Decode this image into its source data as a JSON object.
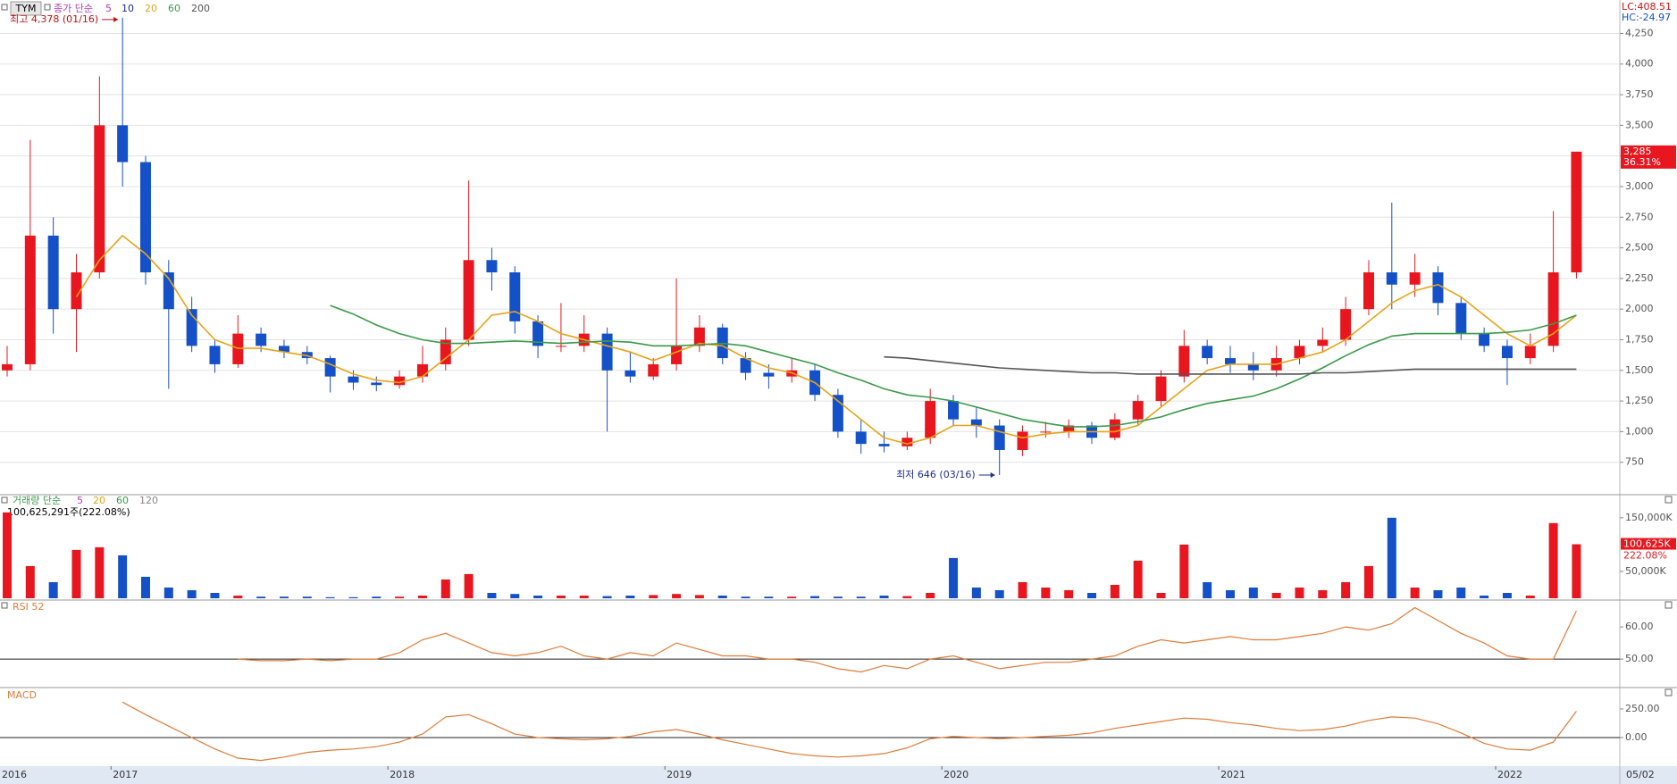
{
  "chart_data": [
    {
      "type": "candlestick",
      "symbol": "TYM",
      "legend_title": "종가 단순",
      "info": [
        "LC:408.51",
        "HC:-24.97"
      ],
      "x_start_label": "2016",
      "x_end_label": "05/02",
      "categories": [
        null,
        null,
        null,
        null,
        null,
        "2017",
        null,
        null,
        null,
        null,
        null,
        null,
        null,
        null,
        null,
        null,
        null,
        "2018",
        null,
        null,
        null,
        null,
        null,
        null,
        null,
        null,
        null,
        null,
        null,
        "2019",
        null,
        null,
        null,
        null,
        null,
        null,
        null,
        null,
        null,
        null,
        null,
        "2020",
        null,
        null,
        null,
        null,
        null,
        null,
        null,
        null,
        null,
        null,
        null,
        "2021",
        null,
        null,
        null,
        null,
        null,
        null,
        null,
        null,
        null,
        null,
        null,
        "2022",
        null,
        null,
        null
      ],
      "open": [
        1500,
        1550,
        2600,
        2000,
        2300,
        3500,
        3200,
        2300,
        2000,
        1700,
        1550,
        1800,
        1700,
        1650,
        1600,
        1450,
        1400,
        1380,
        1450,
        1550,
        1750,
        2400,
        2300,
        1900,
        1700,
        1700,
        1800,
        1500,
        1450,
        1550,
        1700,
        1850,
        1600,
        1480,
        1450,
        1500,
        1300,
        1000,
        900,
        880,
        950,
        1250,
        1100,
        1050,
        850,
        1000,
        1000,
        1050,
        950,
        1100,
        1250,
        1450,
        1700,
        1600,
        1550,
        1500,
        1600,
        1700,
        1750,
        2000,
        2300,
        2200,
        2300,
        2050,
        1800,
        1700,
        1600,
        1700,
        2300
      ],
      "high": [
        1700,
        3380,
        2750,
        2450,
        3900,
        4378,
        3250,
        2400,
        2100,
        1750,
        1950,
        1850,
        1750,
        1700,
        1620,
        1500,
        1450,
        1500,
        1700,
        1850,
        3050,
        2500,
        2350,
        1950,
        2050,
        1950,
        1850,
        1650,
        1600,
        2250,
        1950,
        1880,
        1650,
        1550,
        1600,
        1550,
        1350,
        1100,
        1000,
        1000,
        1350,
        1300,
        1200,
        1100,
        1050,
        1080,
        1100,
        1080,
        1150,
        1300,
        1500,
        1830,
        1750,
        1700,
        1650,
        1700,
        1750,
        1850,
        2100,
        2400,
        2870,
        2450,
        2350,
        2100,
        1850,
        1750,
        1800,
        2800,
        3285
      ],
      "low": [
        1450,
        1500,
        1800,
        1650,
        2250,
        3000,
        2200,
        1350,
        1650,
        1480,
        1520,
        1650,
        1600,
        1550,
        1320,
        1340,
        1330,
        1350,
        1400,
        1500,
        1700,
        2150,
        1800,
        1600,
        1650,
        1650,
        1000,
        1400,
        1420,
        1500,
        1650,
        1550,
        1420,
        1350,
        1400,
        1250,
        950,
        820,
        830,
        850,
        900,
        1050,
        950,
        646,
        800,
        950,
        950,
        900,
        930,
        1050,
        1200,
        1400,
        1550,
        1480,
        1420,
        1450,
        1550,
        1650,
        1700,
        1950,
        2000,
        2100,
        1950,
        1750,
        1650,
        1380,
        1550,
        1650,
        2250
      ],
      "close": [
        1550,
        2600,
        2000,
        2300,
        3500,
        3200,
        2300,
        2000,
        1700,
        1550,
        1800,
        1700,
        1650,
        1600,
        1450,
        1400,
        1380,
        1450,
        1550,
        1750,
        2400,
        2300,
        1900,
        1700,
        1700,
        1800,
        1500,
        1450,
        1550,
        1700,
        1850,
        1600,
        1480,
        1450,
        1500,
        1300,
        1000,
        900,
        880,
        950,
        1250,
        1100,
        1050,
        850,
        1000,
        1000,
        1050,
        950,
        1100,
        1250,
        1450,
        1700,
        1600,
        1550,
        1500,
        1600,
        1700,
        1750,
        2000,
        2300,
        2200,
        2300,
        2050,
        1800,
        1700,
        1600,
        1700,
        2300,
        3285
      ],
      "up_color": "#e8161e",
      "down_color": "#1450c8",
      "series": [
        {
          "name": "5",
          "color": "#b03cb0"
        },
        {
          "name": "10",
          "color": "#1e2d8c"
        },
        {
          "name": "20",
          "color": "#e8a317",
          "values": [
            null,
            null,
            null,
            2100,
            2400,
            2600,
            2450,
            2250,
            1950,
            1750,
            1680,
            1680,
            1650,
            1620,
            1550,
            1470,
            1420,
            1400,
            1450,
            1600,
            1750,
            1950,
            1980,
            1900,
            1800,
            1750,
            1700,
            1650,
            1580,
            1650,
            1720,
            1700,
            1600,
            1520,
            1480,
            1400,
            1250,
            1100,
            950,
            900,
            950,
            1050,
            1050,
            1000,
            950,
            980,
            1000,
            1000,
            1000,
            1050,
            1200,
            1350,
            1500,
            1550,
            1550,
            1550,
            1600,
            1650,
            1750,
            1900,
            2050,
            2150,
            2200,
            2100,
            1950,
            1800,
            1700,
            1800,
            1950
          ]
        },
        {
          "name": "60",
          "color": "#3a9a4a",
          "values": [
            null,
            null,
            null,
            null,
            null,
            null,
            null,
            null,
            null,
            null,
            null,
            null,
            null,
            null,
            2030,
            1960,
            1870,
            1800,
            1750,
            1720,
            1720,
            1730,
            1740,
            1730,
            1720,
            1730,
            1740,
            1730,
            1700,
            1700,
            1710,
            1720,
            1700,
            1650,
            1600,
            1550,
            1480,
            1420,
            1350,
            1300,
            1280,
            1250,
            1200,
            1150,
            1100,
            1070,
            1040,
            1040,
            1050,
            1080,
            1120,
            1180,
            1230,
            1260,
            1290,
            1350,
            1430,
            1520,
            1620,
            1710,
            1780,
            1800,
            1800,
            1800,
            1800,
            1810,
            1830,
            1880,
            1950
          ]
        },
        {
          "name": "200",
          "color": "#555555",
          "values": [
            null,
            null,
            null,
            null,
            null,
            null,
            null,
            null,
            null,
            null,
            null,
            null,
            null,
            null,
            null,
            null,
            null,
            null,
            null,
            null,
            null,
            null,
            null,
            null,
            null,
            null,
            null,
            null,
            null,
            null,
            null,
            null,
            null,
            null,
            null,
            null,
            null,
            null,
            1610,
            1600,
            1580,
            1560,
            1540,
            1520,
            1510,
            1500,
            1490,
            1480,
            1480,
            1470,
            1470,
            1470,
            1470,
            1470,
            1470,
            1470,
            1470,
            1480,
            1480,
            1490,
            1500,
            1510,
            1510,
            1510,
            1510,
            1510,
            1510,
            1510,
            1510
          ]
        }
      ],
      "ylim": [
        500,
        4450
      ],
      "yticks": [
        750,
        {
          "value": 1000,
          "label": "1,000"
        },
        {
          "value": 1250,
          "label": "1,250"
        },
        {
          "value": 1500,
          "label": "1,500"
        },
        {
          "value": 1750,
          "label": "1,750"
        },
        {
          "value": 2000,
          "label": "2,000"
        },
        {
          "value": 2250,
          "label": "2,250"
        },
        {
          "value": 2500,
          "label": "2,500"
        },
        {
          "value": 2750,
          "label": "2,750"
        },
        {
          "value": 3000,
          "label": "3,000"
        },
        {
          "value": 3250,
          "label": "3,250"
        },
        {
          "value": 3500,
          "label": "3,500"
        },
        {
          "value": 3750,
          "label": "3,750"
        },
        {
          "value": 4000,
          "label": "4,000"
        },
        {
          "value": 4250,
          "label": "4,250"
        }
      ],
      "grid": true,
      "last_price_label": "3,285",
      "last_change_label": "36.31%",
      "annotations": [
        "최고 4,378 (01/16)",
        "최저 646 (03/16)"
      ]
    },
    {
      "type": "bar",
      "title": "거래량 단순",
      "subtitle": "100,625,291주(222.08%)",
      "series": [
        {
          "name": "5",
          "color": "#b03cb0"
        },
        {
          "name": "20",
          "color": "#e8a317"
        },
        {
          "name": "60",
          "color": "#3a9a4a"
        },
        {
          "name": "120",
          "color": "#888888"
        }
      ],
      "values": [
        160000,
        60000,
        30000,
        90000,
        95000,
        80000,
        40000,
        20000,
        15000,
        10000,
        5000,
        3000,
        3000,
        3000,
        2000,
        2000,
        3000,
        3000,
        5000,
        35000,
        45000,
        10000,
        8000,
        5000,
        5000,
        5000,
        4000,
        5000,
        6000,
        8000,
        6000,
        5000,
        3000,
        3000,
        3000,
        4000,
        3000,
        3000,
        5000,
        4000,
        10000,
        75000,
        20000,
        15000,
        30000,
        20000,
        15000,
        10000,
        25000,
        70000,
        10000,
        100000,
        30000,
        15000,
        20000,
        10000,
        20000,
        15000,
        30000,
        60000,
        150000,
        20000,
        15000,
        20000,
        5000,
        10000,
        5000,
        140000,
        100625
      ],
      "ylim": [
        0,
        183000
      ],
      "yticks": [
        {
          "value": 150000,
          "label": "150,000K"
        },
        {
          "value": 50000,
          "label": "50,000K"
        }
      ],
      "last_value_label": "100,625K",
      "last_change_label": "222.08%"
    },
    {
      "type": "line",
      "title": "RSI 52",
      "color": "#e07b39",
      "values": [
        null,
        null,
        null,
        null,
        null,
        null,
        null,
        null,
        null,
        null,
        50,
        49.5,
        49.5,
        50,
        49.5,
        50,
        50,
        52,
        56,
        58,
        55,
        52,
        51,
        52,
        54,
        51,
        50,
        52,
        51,
        55,
        53,
        51,
        51,
        50,
        50,
        49,
        47,
        46,
        48,
        47,
        50,
        51,
        49,
        47,
        48,
        49,
        49,
        50,
        51,
        54,
        56,
        55,
        56,
        57,
        56,
        56,
        57,
        58,
        60,
        59,
        61,
        66,
        62,
        58,
        55,
        51,
        50,
        50,
        65
      ],
      "ylim": [
        41.7,
        66.7
      ],
      "yticks": [
        {
          "value": 60,
          "label": "60.00"
        },
        {
          "value": 50,
          "label": "50.00"
        }
      ],
      "ref_line": 50
    },
    {
      "type": "line",
      "title": "MACD",
      "color": "#e07b39",
      "values": [
        null,
        null,
        null,
        null,
        null,
        310,
        200,
        100,
        0,
        -100,
        -180,
        -200,
        -170,
        -130,
        -110,
        -100,
        -80,
        -40,
        30,
        180,
        200,
        120,
        30,
        0,
        -10,
        -20,
        -10,
        10,
        50,
        70,
        30,
        -20,
        -60,
        -100,
        -140,
        -160,
        -170,
        -160,
        -140,
        -90,
        -10,
        10,
        0,
        -10,
        0,
        10,
        20,
        40,
        80,
        110,
        140,
        170,
        160,
        130,
        110,
        80,
        60,
        70,
        100,
        150,
        180,
        170,
        120,
        40,
        -50,
        -100,
        -110,
        -40,
        230
      ],
      "ylim": [
        -250,
        390
      ],
      "yticks": [
        {
          "value": 250,
          "label": "250.00"
        },
        {
          "value": 0,
          "label": "0.00"
        }
      ],
      "ref_line": 0
    }
  ]
}
